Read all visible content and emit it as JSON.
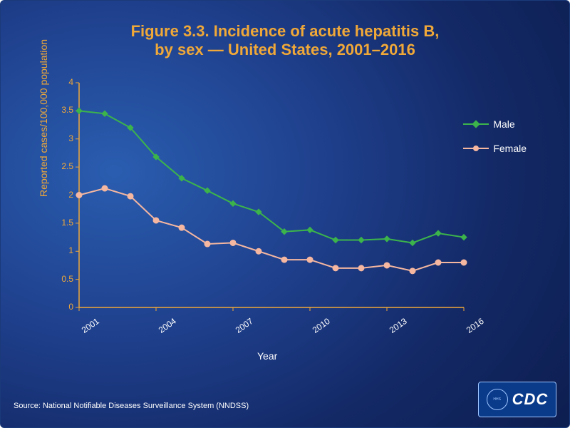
{
  "title_line1": "Figure 3.3. Incidence of acute hepatitis B,",
  "title_line2": "by sex — United States, 2001–2016",
  "source": "Source: National Notifiable Diseases Surveillance System (NNDSS)",
  "chart": {
    "type": "line",
    "x_label": "Year",
    "y_label": "Reported cases/100,000 population",
    "xlim": [
      2001,
      2016
    ],
    "ylim": [
      0,
      4
    ],
    "ytick_step": 0.5,
    "xtick_step": 3,
    "xticks": [
      2001,
      2004,
      2007,
      2010,
      2013,
      2016
    ],
    "yticks": [
      0,
      0.5,
      1,
      1.5,
      2,
      2.5,
      3,
      3.5,
      4
    ],
    "background_color": "#162c6e",
    "axis_color": "#f0a838",
    "tick_label_color_y": "#f0a838",
    "tick_label_color_x": "#ffffff",
    "axis_label_color_y": "#f0a838",
    "axis_label_color_x": "#ffffff",
    "title_color": "#f0a838",
    "title_fontsize": 22,
    "label_fontsize": 14,
    "tick_fontsize": 12,
    "line_width": 2,
    "marker_size": 8,
    "series": [
      {
        "name": "Male",
        "color": "#3cb44b",
        "marker": "diamond",
        "x": [
          2001,
          2002,
          2003,
          2004,
          2005,
          2006,
          2007,
          2008,
          2009,
          2010,
          2011,
          2012,
          2013,
          2014,
          2015,
          2016
        ],
        "y": [
          3.5,
          3.45,
          3.2,
          2.68,
          2.3,
          2.08,
          1.85,
          1.7,
          1.35,
          1.38,
          1.2,
          1.2,
          1.22,
          1.15,
          1.32,
          1.25
        ]
      },
      {
        "name": "Female",
        "color": "#f5b7a0",
        "marker": "circle",
        "x": [
          2001,
          2002,
          2003,
          2004,
          2005,
          2006,
          2007,
          2008,
          2009,
          2010,
          2011,
          2012,
          2013,
          2014,
          2015,
          2016
        ],
        "y": [
          2.0,
          2.12,
          1.98,
          1.55,
          1.42,
          1.13,
          1.15,
          1.0,
          0.85,
          0.85,
          0.7,
          0.7,
          0.75,
          0.65,
          0.8,
          0.8
        ]
      }
    ]
  },
  "legend": {
    "items": [
      "Male",
      "Female"
    ]
  },
  "cdc_label": "CDC"
}
